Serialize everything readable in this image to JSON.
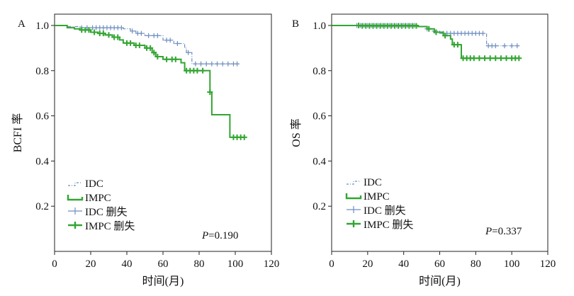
{
  "figure": {
    "ann_note": "P=0.190 / P=0.337 are printed as text in each panel"
  },
  "chart_data": [
    {
      "type": "line",
      "panel": "A",
      "title": "",
      "xlabel": "时间(月)",
      "ylabel": "BCFI 率",
      "xlim": [
        0,
        120
      ],
      "ylim": [
        0.0,
        1.05
      ],
      "xticks": [
        "0",
        "20",
        "40",
        "60",
        "80",
        "100",
        "120"
      ],
      "yticks": [
        "1.0",
        "0.8",
        "0.6",
        "0.4",
        "0.2"
      ],
      "ytick_values": [
        1.0,
        0.8,
        0.6,
        0.4,
        0.2
      ],
      "xtick_values": [
        0,
        20,
        40,
        60,
        80,
        100,
        120
      ],
      "pvalue": "P=0.190",
      "legend": [
        "IDC",
        "IMPC",
        "IDC 删失",
        "IMPC 删失"
      ],
      "legend_position": "bottom-left",
      "series": [
        {
          "name": "IDC",
          "color": "#6f8fbf",
          "style": "dash-dot",
          "steps": [
            [
              0,
              1.0
            ],
            [
              7,
              0.995
            ],
            [
              15,
              0.99
            ],
            [
              38,
              0.985
            ],
            [
              42,
              0.975
            ],
            [
              45,
              0.965
            ],
            [
              50,
              0.955
            ],
            [
              60,
              0.935
            ],
            [
              66,
              0.92
            ],
            [
              72,
              0.9
            ],
            [
              73,
              0.88
            ],
            [
              76,
              0.83
            ],
            [
              102,
              0.83
            ]
          ],
          "censored": [
            [
              15,
              0.99
            ],
            [
              18,
              0.99
            ],
            [
              21,
              0.99
            ],
            [
              23,
              0.99
            ],
            [
              25,
              0.99
            ],
            [
              27,
              0.99
            ],
            [
              29,
              0.99
            ],
            [
              31,
              0.99
            ],
            [
              33,
              0.99
            ],
            [
              35,
              0.99
            ],
            [
              37,
              0.99
            ],
            [
              43,
              0.975
            ],
            [
              46,
              0.965
            ],
            [
              48,
              0.965
            ],
            [
              52,
              0.955
            ],
            [
              55,
              0.955
            ],
            [
              57,
              0.955
            ],
            [
              62,
              0.935
            ],
            [
              64,
              0.935
            ],
            [
              68,
              0.92
            ],
            [
              74,
              0.88
            ],
            [
              78,
              0.83
            ],
            [
              81,
              0.83
            ],
            [
              84,
              0.83
            ],
            [
              87,
              0.83
            ],
            [
              90,
              0.83
            ],
            [
              93,
              0.83
            ],
            [
              96,
              0.83
            ],
            [
              99,
              0.83
            ],
            [
              101,
              0.83
            ]
          ]
        },
        {
          "name": "IMPC",
          "color": "#33a532",
          "style": "solid",
          "steps": [
            [
              0,
              1.0
            ],
            [
              7,
              0.99
            ],
            [
              11,
              0.985
            ],
            [
              14,
              0.98
            ],
            [
              20,
              0.97
            ],
            [
              24,
              0.965
            ],
            [
              28,
              0.958
            ],
            [
              32,
              0.948
            ],
            [
              36,
              0.936
            ],
            [
              38,
              0.922
            ],
            [
              44,
              0.912
            ],
            [
              50,
              0.9
            ],
            [
              54,
              0.88
            ],
            [
              56,
              0.862
            ],
            [
              60,
              0.85
            ],
            [
              70,
              0.835
            ],
            [
              72,
              0.8
            ],
            [
              85,
              0.8
            ],
            [
              86,
              0.705
            ],
            [
              87,
              0.605
            ],
            [
              96,
              0.605
            ],
            [
              97,
              0.505
            ],
            [
              105,
              0.505
            ]
          ],
          "censored": [
            [
              15,
              0.98
            ],
            [
              17,
              0.98
            ],
            [
              19,
              0.98
            ],
            [
              22,
              0.97
            ],
            [
              25,
              0.965
            ],
            [
              27,
              0.965
            ],
            [
              30,
              0.958
            ],
            [
              33,
              0.948
            ],
            [
              35,
              0.948
            ],
            [
              40,
              0.922
            ],
            [
              42,
              0.922
            ],
            [
              45,
              0.912
            ],
            [
              47,
              0.912
            ],
            [
              51,
              0.9
            ],
            [
              53,
              0.9
            ],
            [
              55,
              0.88
            ],
            [
              57,
              0.862
            ],
            [
              62,
              0.85
            ],
            [
              65,
              0.85
            ],
            [
              67,
              0.85
            ],
            [
              73,
              0.8
            ],
            [
              75,
              0.8
            ],
            [
              77,
              0.8
            ],
            [
              79,
              0.8
            ],
            [
              82,
              0.8
            ],
            [
              86,
              0.705
            ],
            [
              99,
              0.505
            ],
            [
              101,
              0.505
            ],
            [
              103,
              0.505
            ],
            [
              105,
              0.505
            ]
          ]
        }
      ]
    },
    {
      "type": "line",
      "panel": "B",
      "title": "",
      "xlabel": "时间(月)",
      "ylabel": "OS 率",
      "xlim": [
        0,
        120
      ],
      "ylim": [
        0.0,
        1.05
      ],
      "xticks": [
        "0",
        "20",
        "40",
        "60",
        "80",
        "100",
        "120"
      ],
      "yticks": [
        "1.0",
        "0.8",
        "0.6",
        "0.4",
        "0.2"
      ],
      "ytick_values": [
        1.0,
        0.8,
        0.6,
        0.4,
        0.2
      ],
      "xtick_values": [
        0,
        20,
        40,
        60,
        80,
        100,
        120
      ],
      "pvalue": "P=0.337",
      "legend": [
        "IDC",
        "IMPC",
        "IDC 删失",
        "IMPC 删失"
      ],
      "legend_position": "bottom-left",
      "series": [
        {
          "name": "IDC",
          "color": "#6f8fbf",
          "style": "dash-dot",
          "steps": [
            [
              0,
              1.0
            ],
            [
              14,
              1.0
            ],
            [
              48,
              0.995
            ],
            [
              52,
              0.985
            ],
            [
              56,
              0.975
            ],
            [
              60,
              0.965
            ],
            [
              85,
              0.965
            ],
            [
              86,
              0.91
            ],
            [
              104,
              0.91
            ]
          ],
          "censored": [
            [
              14,
              1.0
            ],
            [
              16,
              1.0
            ],
            [
              18,
              1.0
            ],
            [
              20,
              1.0
            ],
            [
              22,
              1.0
            ],
            [
              24,
              1.0
            ],
            [
              26,
              1.0
            ],
            [
              28,
              1.0
            ],
            [
              30,
              1.0
            ],
            [
              32,
              1.0
            ],
            [
              34,
              1.0
            ],
            [
              36,
              1.0
            ],
            [
              38,
              1.0
            ],
            [
              40,
              1.0
            ],
            [
              42,
              1.0
            ],
            [
              44,
              1.0
            ],
            [
              46,
              1.0
            ],
            [
              53,
              0.985
            ],
            [
              57,
              0.975
            ],
            [
              62,
              0.965
            ],
            [
              64,
              0.965
            ],
            [
              66,
              0.965
            ],
            [
              68,
              0.965
            ],
            [
              70,
              0.965
            ],
            [
              72,
              0.965
            ],
            [
              74,
              0.965
            ],
            [
              76,
              0.965
            ],
            [
              78,
              0.965
            ],
            [
              80,
              0.965
            ],
            [
              82,
              0.965
            ],
            [
              84,
              0.965
            ],
            [
              87,
              0.91
            ],
            [
              89,
              0.91
            ],
            [
              91,
              0.91
            ],
            [
              96,
              0.91
            ],
            [
              100,
              0.91
            ],
            [
              103,
              0.91
            ]
          ]
        },
        {
          "name": "IMPC",
          "color": "#33a532",
          "style": "solid",
          "steps": [
            [
              0,
              1.0
            ],
            [
              48,
              0.995
            ],
            [
              53,
              0.985
            ],
            [
              57,
              0.97
            ],
            [
              62,
              0.955
            ],
            [
              66,
              0.94
            ],
            [
              67,
              0.915
            ],
            [
              71,
              0.915
            ],
            [
              72,
              0.855
            ],
            [
              104,
              0.855
            ]
          ],
          "censored": [
            [
              15,
              1.0
            ],
            [
              17,
              0.998
            ],
            [
              19,
              0.998
            ],
            [
              21,
              0.998
            ],
            [
              23,
              0.998
            ],
            [
              25,
              0.998
            ],
            [
              27,
              0.998
            ],
            [
              29,
              0.998
            ],
            [
              31,
              0.998
            ],
            [
              33,
              0.998
            ],
            [
              35,
              0.998
            ],
            [
              37,
              0.998
            ],
            [
              39,
              0.998
            ],
            [
              41,
              0.998
            ],
            [
              43,
              0.998
            ],
            [
              45,
              0.998
            ],
            [
              47,
              0.998
            ],
            [
              54,
              0.985
            ],
            [
              58,
              0.97
            ],
            [
              63,
              0.955
            ],
            [
              68,
              0.915
            ],
            [
              70,
              0.915
            ],
            [
              73,
              0.855
            ],
            [
              75,
              0.855
            ],
            [
              77,
              0.855
            ],
            [
              79,
              0.855
            ],
            [
              82,
              0.855
            ],
            [
              85,
              0.855
            ],
            [
              88,
              0.855
            ],
            [
              91,
              0.855
            ],
            [
              94,
              0.855
            ],
            [
              97,
              0.855
            ],
            [
              100,
              0.855
            ],
            [
              102,
              0.855
            ],
            [
              104,
              0.855
            ]
          ]
        }
      ]
    }
  ]
}
